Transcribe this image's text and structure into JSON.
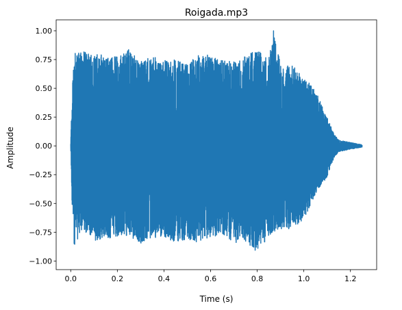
{
  "chart_data": {
    "type": "line",
    "title": "Roigada.mp3",
    "xlabel": "Time (s)",
    "ylabel": "Amplitude",
    "xlim": [
      -0.0625,
      1.3125
    ],
    "ylim": [
      -1.075,
      1.095
    ],
    "xticks": [
      0.0,
      0.2,
      0.4,
      0.6,
      0.8,
      1.0,
      1.2
    ],
    "xtick_labels": [
      "0.0",
      "0.2",
      "0.4",
      "0.6",
      "0.8",
      "1.0",
      "1.2"
    ],
    "yticks": [
      -1.0,
      -0.75,
      -0.5,
      -0.25,
      0.0,
      0.25,
      0.5,
      0.75,
      1.0
    ],
    "ytick_labels": [
      "−1.00",
      "−0.75",
      "−0.50",
      "−0.25",
      "0.00",
      "0.25",
      "0.50",
      "0.75",
      "1.00"
    ],
    "grid": false,
    "line_color": "#1f77b4",
    "duration_s": 1.25,
    "envelope": {
      "t": [
        0.0,
        0.005,
        0.01,
        0.02,
        0.05,
        0.1,
        0.15,
        0.2,
        0.25,
        0.3,
        0.35,
        0.4,
        0.45,
        0.5,
        0.55,
        0.6,
        0.65,
        0.7,
        0.75,
        0.8,
        0.85,
        0.87,
        0.9,
        0.95,
        1.0,
        1.05,
        1.1,
        1.13,
        1.15,
        1.2,
        1.25
      ],
      "upper": [
        0.02,
        0.47,
        0.65,
        0.82,
        0.82,
        0.8,
        0.79,
        0.78,
        0.84,
        0.73,
        0.78,
        0.75,
        0.75,
        0.72,
        0.79,
        0.79,
        0.75,
        0.74,
        0.78,
        0.84,
        0.77,
        1.0,
        0.72,
        0.7,
        0.6,
        0.48,
        0.25,
        0.1,
        0.05,
        0.03,
        0.01
      ],
      "lower": [
        -0.02,
        -0.45,
        -0.98,
        -0.87,
        -0.72,
        -0.82,
        -0.82,
        -0.8,
        -0.78,
        -0.85,
        -0.8,
        -0.79,
        -0.84,
        -0.82,
        -0.84,
        -0.8,
        -0.76,
        -0.84,
        -0.85,
        -0.92,
        -0.8,
        -0.75,
        -0.72,
        -0.72,
        -0.64,
        -0.42,
        -0.27,
        -0.1,
        -0.05,
        -0.03,
        -0.01
      ]
    }
  }
}
